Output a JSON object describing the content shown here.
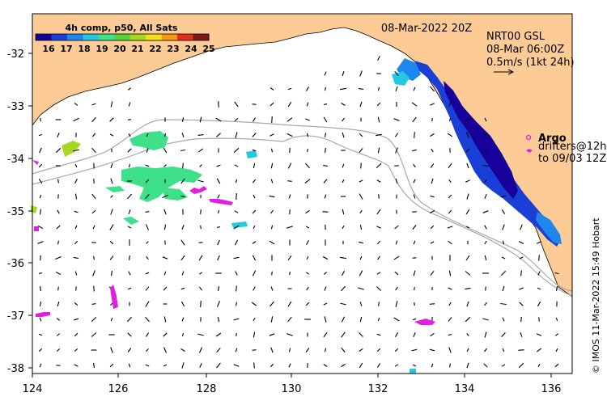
{
  "title": "08-Mar-2022 20Z",
  "colorbar": {
    "title": "4h comp, p50, All Sats",
    "ticks": [
      "16",
      "17",
      "18",
      "19",
      "20",
      "21",
      "22",
      "23",
      "24",
      "25"
    ],
    "colors": [
      "#18009a",
      "#1a3fd6",
      "#1f86ee",
      "#26c7e0",
      "#3ee08a",
      "#56d23a",
      "#a6d81f",
      "#f0e11a",
      "#f59a17",
      "#e0301c",
      "#7a1a10"
    ]
  },
  "info": {
    "line1": "NRT00 GSL",
    "line2": "08-Mar 06:00Z",
    "line3": "0.5m/s (1kt 24h)"
  },
  "legend": {
    "argo": "Argo",
    "drifters1": "drifters@12h",
    "drifters2": "to 09/03 12Z"
  },
  "credit": "© IMOS 11-Mar-2022 15:49 Hobart",
  "axes": {
    "x_ticks": [
      "124",
      "126",
      "128",
      "130",
      "132",
      "134",
      "136"
    ],
    "y_ticks": [
      "-32",
      "-33",
      "-34",
      "-35",
      "-36",
      "-37",
      "-38"
    ],
    "lon_range": [
      124,
      136.4
    ],
    "lat_range": [
      -38.1,
      -31.3
    ]
  },
  "colors": {
    "land": "#fdcb96",
    "argo": "#e020e0",
    "contour": "#a8a8a8"
  }
}
